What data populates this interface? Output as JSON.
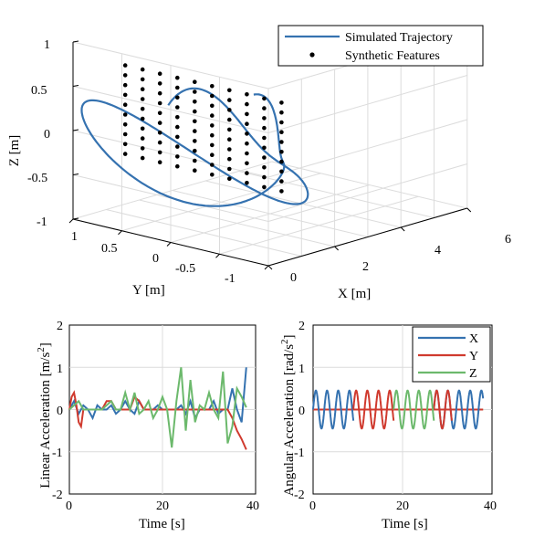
{
  "colors": {
    "x": "#3572b0",
    "y": "#d03a2e",
    "z": "#6cb96c",
    "features": "#000000"
  },
  "chart_data": [
    {
      "type": "line3d",
      "title": "",
      "xlabel": "X [m]",
      "ylabel": "Y [m]",
      "zlabel": "Z [m]",
      "xlim": [
        0,
        6
      ],
      "ylim": [
        -1,
        1
      ],
      "zlim": [
        -1,
        1
      ],
      "xticks": [
        "0",
        "2",
        "4",
        "6"
      ],
      "yticks": [
        "1",
        "0.5",
        "0",
        "-0.5",
        "-1"
      ],
      "zticks": [
        "1",
        "0.5",
        "0",
        "-0.5",
        "-1"
      ],
      "legend": [
        "Simulated Trajectory",
        "Synthetic Features"
      ],
      "features": {
        "rows": 10,
        "cols": 10,
        "x": 6,
        "y_range": [
          -0.8,
          0.8
        ],
        "z_range": [
          -0.5,
          0.5
        ]
      },
      "grid": true
    },
    {
      "type": "line",
      "title": "",
      "xlabel": "Time [s]",
      "ylabel": "Linear Acceleration [m/s",
      "ylabel_sup": "2",
      "ylabel_end": "]",
      "xlim": [
        0,
        40
      ],
      "ylim": [
        -2,
        2
      ],
      "xticks": [
        "0",
        "20",
        "40"
      ],
      "yticks": [
        "2",
        "1",
        "0",
        "-1",
        "-2"
      ],
      "series": [
        {
          "name": "X",
          "x": [
            0,
            1,
            2,
            3,
            4,
            5,
            6,
            7,
            8,
            9,
            10,
            11,
            12,
            13,
            14,
            15,
            16,
            17,
            18,
            19,
            20,
            21,
            22,
            23,
            24,
            25,
            26,
            27,
            28,
            29,
            30,
            31,
            32,
            33,
            34,
            35,
            36,
            37,
            38
          ],
          "values": [
            0,
            0.2,
            -0.1,
            0.1,
            0,
            -0.2,
            0.1,
            0,
            0,
            0.1,
            -0.1,
            0,
            0.2,
            0,
            -0.1,
            0.2,
            0,
            0,
            0,
            0.1,
            0,
            0,
            0,
            0,
            0.1,
            -0.1,
            0.2,
            -0.2,
            0,
            0,
            0,
            0.2,
            -0.1,
            0,
            0,
            0.5,
            0,
            -0.3,
            1.0
          ]
        },
        {
          "name": "Y",
          "x": [
            0,
            0.5,
            1,
            1.5,
            2,
            2.5,
            3,
            4,
            5,
            6,
            7,
            8,
            9,
            10,
            11,
            12,
            13,
            14,
            15,
            16,
            17,
            18,
            19,
            20,
            21,
            22,
            23,
            24,
            25,
            26,
            27,
            28,
            29,
            30,
            31,
            32,
            33,
            34,
            35,
            36,
            37,
            38
          ],
          "values": [
            0,
            0.3,
            0.4,
            0.1,
            -0.3,
            -0.4,
            0,
            0,
            0,
            0,
            0,
            0.2,
            0.2,
            0,
            0,
            0,
            0,
            0.3,
            0.2,
            0,
            0,
            0,
            0,
            0,
            0,
            0,
            0,
            0,
            0,
            0,
            0,
            0,
            0,
            0,
            0,
            0,
            0,
            0,
            -0.2,
            -0.5,
            -0.7,
            -0.95
          ]
        },
        {
          "name": "Z",
          "x": [
            0,
            1,
            2,
            3,
            4,
            5,
            6,
            7,
            8,
            9,
            10,
            11,
            12,
            13,
            14,
            15,
            16,
            17,
            18,
            19,
            20,
            21,
            22,
            23,
            24,
            25,
            26,
            27,
            28,
            29,
            30,
            31,
            32,
            33,
            34,
            35,
            36,
            37,
            38
          ],
          "values": [
            0,
            0.1,
            0.2,
            0,
            0,
            0,
            0,
            0,
            0.1,
            0.2,
            0,
            0,
            0.4,
            0,
            0.4,
            -0.1,
            0,
            0.2,
            -0.2,
            0,
            0.3,
            0,
            -0.9,
            0.2,
            1.0,
            -0.5,
            0.7,
            -0.3,
            0.1,
            0,
            0.4,
            0,
            -0.2,
            0.9,
            -0.8,
            -0.4,
            0.5,
            0.3,
            0.05
          ]
        }
      ],
      "grid": true
    },
    {
      "type": "line",
      "title": "",
      "xlabel": "Time [s]",
      "ylabel": "Angular Acceleration [rad/s",
      "ylabel_sup": "2",
      "ylabel_end": "]",
      "xlim": [
        0,
        40
      ],
      "ylim": [
        -2,
        2
      ],
      "xticks": [
        "0",
        "20",
        "40"
      ],
      "yticks": [
        "2",
        "1",
        "0",
        "-1",
        "-2"
      ],
      "legend": [
        "X",
        "Y",
        "Z"
      ],
      "series": [
        {
          "name": "X",
          "segments": [
            [
              0,
              9
            ],
            [
              27,
              38
            ]
          ],
          "amplitude": 0.45,
          "period": 2.5
        },
        {
          "name": "Y",
          "segments": [
            [
              9,
              18
            ],
            [
              27,
              31
            ]
          ],
          "amplitude": 0.45,
          "period": 2.5
        },
        {
          "name": "Z",
          "segments": [
            [
              18,
              27
            ]
          ],
          "amplitude": 0.45,
          "period": 2.5
        }
      ],
      "grid": true
    }
  ]
}
